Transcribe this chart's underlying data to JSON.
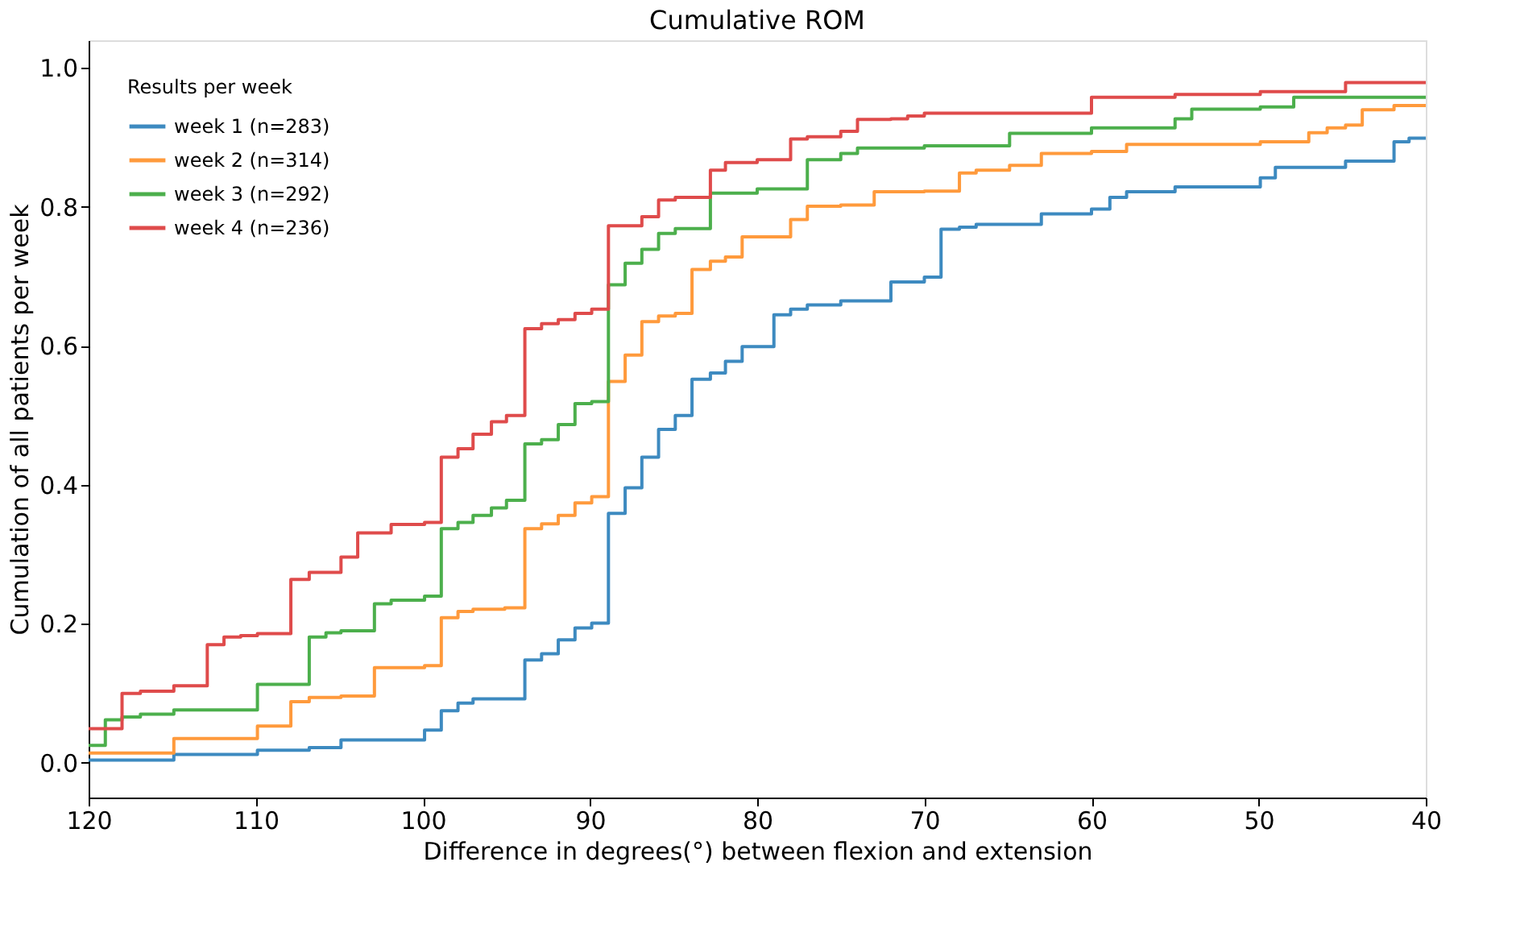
{
  "chart_data": {
    "type": "step",
    "title": "Cumulative ROM",
    "xlabel": "Difference in degrees(°) between flexion and extension",
    "ylabel": "Cumulation of all patients per week",
    "legend_title": "Results per week",
    "legend": "top left",
    "grid": false,
    "marker": "none",
    "line_style": "solid",
    "xlim": [
      120,
      40
    ],
    "xticks": [
      120,
      110,
      100,
      90,
      80,
      70,
      60,
      50,
      40
    ],
    "ylim": [
      -0.05,
      1.04
    ],
    "yticks": [
      {
        "value": 0,
        "label": "0.0"
      },
      0.2,
      0.4,
      0.6,
      0.8,
      {
        "value": 1,
        "label": "1.0"
      }
    ],
    "series": [
      {
        "name": "week 1 (n=283)",
        "color": "#3d8ac0",
        "x": [
          120,
          114.9,
          109.9,
          106.8,
          104.9,
          99.9,
          98.9,
          97.9,
          97.0,
          93.9,
          92.9,
          91.9,
          90.9,
          89.9,
          88.9,
          87.9,
          86.9,
          85.9,
          84.9,
          83.9,
          82.8,
          81.9,
          80.9,
          79.0,
          78.0,
          77.0,
          75.0,
          72.0,
          70.0,
          69.0,
          67.9,
          66.9,
          63.0,
          60.0,
          58.9,
          57.9,
          55.0,
          49.9,
          49.0,
          44.8,
          41.9,
          41.0,
          40
        ],
        "values": [
          0.004,
          0.012,
          0.018,
          0.022,
          0.033,
          0.047,
          0.075,
          0.086,
          0.092,
          0.148,
          0.157,
          0.177,
          0.194,
          0.201,
          0.359,
          0.396,
          0.44,
          0.48,
          0.5,
          0.552,
          0.561,
          0.578,
          0.599,
          0.645,
          0.653,
          0.659,
          0.665,
          0.692,
          0.699,
          0.768,
          0.771,
          0.775,
          0.79,
          0.797,
          0.814,
          0.822,
          0.829,
          0.842,
          0.857,
          0.866,
          0.894,
          0.899,
          0.899
        ]
      },
      {
        "name": "week 2 (n=314)",
        "color": "#ff9a3c",
        "x": [
          120,
          114.9,
          109.9,
          107.9,
          106.8,
          104.9,
          102.9,
          99.9,
          98.9,
          97.9,
          97.0,
          95.1,
          93.9,
          92.9,
          91.9,
          90.9,
          89.9,
          88.9,
          87.9,
          86.9,
          85.9,
          84.9,
          83.9,
          82.8,
          81.9,
          80.9,
          78.0,
          77.0,
          75.0,
          73.0,
          70.0,
          67.9,
          66.9,
          64.9,
          63.0,
          60.0,
          57.9,
          49.9,
          47.0,
          45.9,
          44.8,
          43.8,
          41.9,
          40
        ],
        "values": [
          0.014,
          0.035,
          0.053,
          0.088,
          0.094,
          0.096,
          0.137,
          0.14,
          0.209,
          0.218,
          0.221,
          0.223,
          0.337,
          0.344,
          0.356,
          0.374,
          0.383,
          0.549,
          0.587,
          0.635,
          0.643,
          0.647,
          0.71,
          0.722,
          0.728,
          0.757,
          0.782,
          0.801,
          0.803,
          0.822,
          0.823,
          0.849,
          0.853,
          0.86,
          0.877,
          0.88,
          0.89,
          0.894,
          0.907,
          0.914,
          0.918,
          0.94,
          0.946,
          0.946
        ]
      },
      {
        "name": "week 3 (n=292)",
        "color": "#4caf4c",
        "x": [
          120,
          119.0,
          118.0,
          116.9,
          114.9,
          109.9,
          106.8,
          105.8,
          104.9,
          102.9,
          101.9,
          99.9,
          98.9,
          97.9,
          97.0,
          95.9,
          95.0,
          93.9,
          92.9,
          91.9,
          90.9,
          89.9,
          88.9,
          87.9,
          86.9,
          85.9,
          84.9,
          82.8,
          80.0,
          77.0,
          75.0,
          74.0,
          70.0,
          64.9,
          60.0,
          55.0,
          54.0,
          49.9,
          47.9,
          40
        ],
        "values": [
          0.025,
          0.062,
          0.066,
          0.07,
          0.076,
          0.113,
          0.181,
          0.187,
          0.19,
          0.229,
          0.234,
          0.24,
          0.337,
          0.346,
          0.356,
          0.367,
          0.378,
          0.459,
          0.465,
          0.487,
          0.517,
          0.52,
          0.688,
          0.719,
          0.739,
          0.762,
          0.769,
          0.82,
          0.826,
          0.868,
          0.877,
          0.885,
          0.888,
          0.906,
          0.914,
          0.927,
          0.941,
          0.944,
          0.958,
          0.958
        ]
      },
      {
        "name": "week 4 (n=236)",
        "color": "#df4b4b",
        "x": [
          120,
          118.0,
          116.9,
          114.9,
          112.9,
          111.9,
          110.9,
          109.9,
          107.9,
          106.8,
          104.9,
          103.9,
          101.9,
          99.9,
          98.9,
          97.9,
          97.0,
          95.9,
          95.0,
          93.9,
          92.9,
          91.9,
          90.9,
          89.9,
          88.9,
          86.9,
          85.9,
          84.9,
          82.8,
          81.9,
          80.0,
          78.0,
          77.0,
          75.0,
          74.0,
          72.0,
          71.0,
          70.0,
          60.0,
          55.0,
          49.9,
          44.8,
          40
        ],
        "values": [
          0.049,
          0.1,
          0.103,
          0.111,
          0.17,
          0.181,
          0.183,
          0.186,
          0.264,
          0.274,
          0.296,
          0.331,
          0.343,
          0.346,
          0.44,
          0.452,
          0.473,
          0.491,
          0.5,
          0.625,
          0.632,
          0.638,
          0.647,
          0.653,
          0.773,
          0.786,
          0.81,
          0.814,
          0.853,
          0.864,
          0.868,
          0.898,
          0.901,
          0.909,
          0.926,
          0.927,
          0.931,
          0.935,
          0.958,
          0.962,
          0.966,
          0.979,
          0.979
        ]
      }
    ]
  }
}
